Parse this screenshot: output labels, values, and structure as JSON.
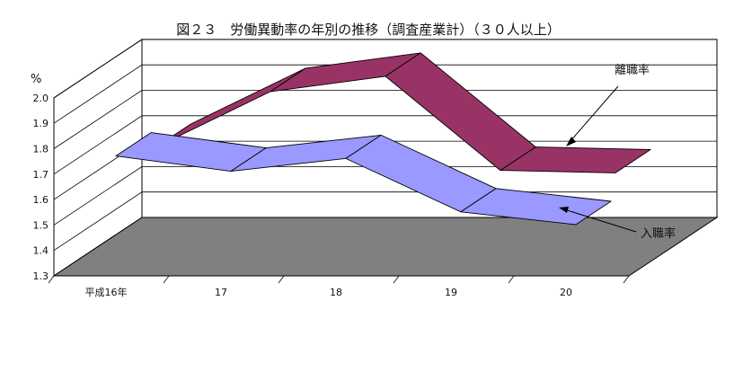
{
  "chart_data": {
    "type": "line",
    "style": "3d-ribbon",
    "title": "図２３　労働異動率の年別の推移（調査産業計）（３０人以上）",
    "y_unit": "%",
    "ylim": [
      1.3,
      2.0
    ],
    "yticks": [
      "2.0",
      "1.9",
      "1.8",
      "1.7",
      "1.6",
      "1.5",
      "1.4",
      "1.3"
    ],
    "categories": [
      "平成16年",
      "17",
      "18",
      "19",
      "20"
    ],
    "series": [
      {
        "name": "離職率",
        "values": [
          1.69,
          1.91,
          1.97,
          1.6,
          1.59
        ],
        "color": "#993366"
      },
      {
        "name": "入職率",
        "values": [
          1.76,
          1.7,
          1.75,
          1.54,
          1.49
        ],
        "color": "#9999ff"
      }
    ],
    "grid": true,
    "floor_color": "#808080"
  }
}
